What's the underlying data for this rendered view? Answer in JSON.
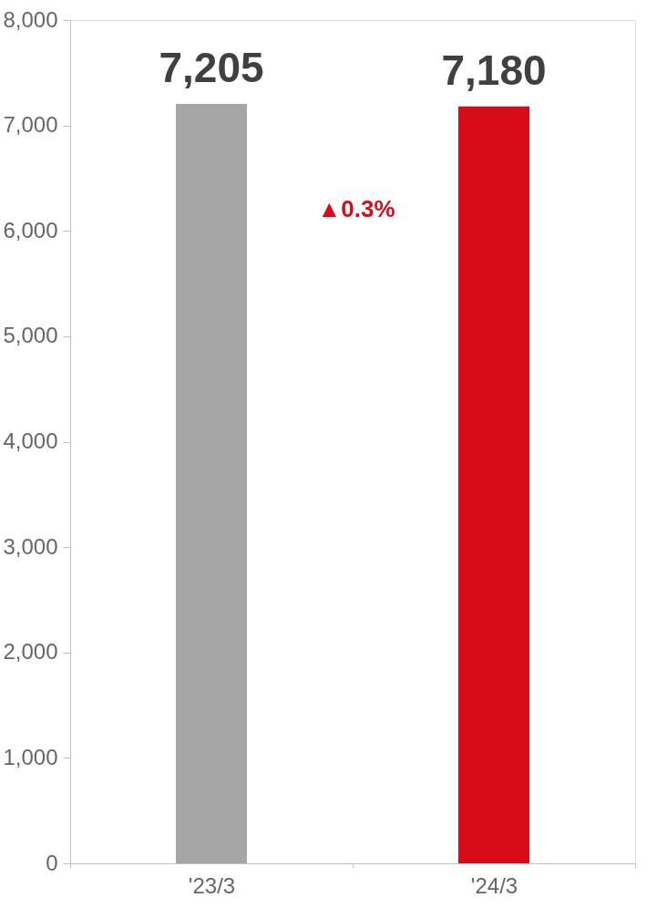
{
  "chart_data": {
    "type": "bar",
    "categories": [
      "'23/3",
      "'24/3"
    ],
    "values": [
      7205,
      7180
    ],
    "colors": [
      "#a6a6a6",
      "#d70c18"
    ],
    "ylim": [
      0,
      8000
    ],
    "yticks": [
      0,
      {
        "value": 1000,
        "label": "1,000"
      },
      {
        "value": 2000,
        "label": "2,000"
      },
      {
        "value": 3000,
        "label": "3,000"
      },
      {
        "value": 4000,
        "label": "4,000"
      },
      {
        "value": 5000,
        "label": "5,000"
      },
      {
        "value": 6000,
        "label": "6,000"
      },
      {
        "value": 7000,
        "label": "7,000"
      },
      {
        "value": 8000,
        "label": "8,000"
      }
    ],
    "grid": false,
    "value_labels": [
      "7,205",
      "7,180"
    ],
    "annotations": [
      "▲0.3%"
    ]
  }
}
